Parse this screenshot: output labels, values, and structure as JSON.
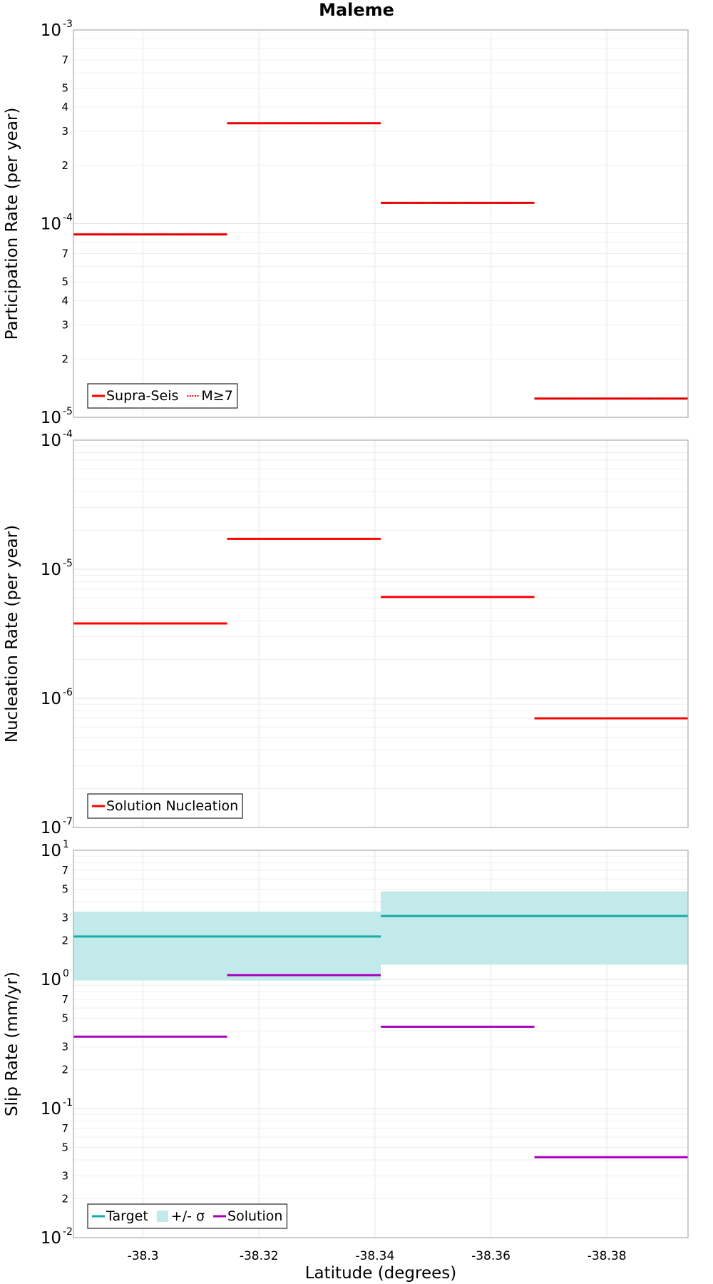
{
  "chart_data": [
    {
      "type": "line",
      "title": "Maleme",
      "ylabel": "Participation Rate (per year)",
      "yscale": "log",
      "ylim": [
        1e-05,
        0.001
      ],
      "xlim": [
        -38.288,
        -38.394
      ],
      "x_reversed": true,
      "grid": true,
      "legend_position": "bottom-left",
      "y_major_ticks": [
        {
          "base": "10",
          "exp": "-5",
          "value": 1e-05
        },
        {
          "base": "10",
          "exp": "-4",
          "value": 0.0001
        },
        {
          "base": "10",
          "exp": "-3",
          "value": 0.001
        }
      ],
      "y_minor_tick_labels": [
        "2",
        "3",
        "4",
        "5",
        "7"
      ],
      "series": [
        {
          "name": "Supra-Seis",
          "color": "#ff0000",
          "style": "solid",
          "segments": [
            {
              "x": [
                -38.288,
                -38.3145
              ],
              "y": 8.8e-05
            },
            {
              "x": [
                -38.3145,
                -38.341
              ],
              "y": 0.00033
            },
            {
              "x": [
                -38.341,
                -38.3675
              ],
              "y": 0.000128
            },
            {
              "x": [
                -38.3675,
                -38.394
              ],
              "y": 1.25e-05
            }
          ]
        },
        {
          "name": "M≥7",
          "color": "#ff0000",
          "style": "dotted",
          "segments": [
            {
              "x": [
                -38.288,
                -38.3145
              ],
              "y": 8.8e-05
            },
            {
              "x": [
                -38.3145,
                -38.341
              ],
              "y": 0.00033
            },
            {
              "x": [
                -38.341,
                -38.3675
              ],
              "y": 0.000128
            },
            {
              "x": [
                -38.3675,
                -38.394
              ],
              "y": 1.25e-05
            }
          ]
        }
      ]
    },
    {
      "type": "line",
      "ylabel": "Nucleation Rate (per year)",
      "yscale": "log",
      "ylim": [
        1e-07,
        0.0001
      ],
      "xlim": [
        -38.288,
        -38.394
      ],
      "x_reversed": true,
      "grid": true,
      "legend_position": "bottom-left",
      "y_major_ticks": [
        {
          "base": "10",
          "exp": "-7",
          "value": 1e-07
        },
        {
          "base": "10",
          "exp": "-6",
          "value": 1e-06
        },
        {
          "base": "10",
          "exp": "-5",
          "value": 1e-05
        },
        {
          "base": "10",
          "exp": "-4",
          "value": 0.0001
        }
      ],
      "series": [
        {
          "name": "Solution Nucleation",
          "color": "#ff0000",
          "style": "solid",
          "segments": [
            {
              "x": [
                -38.288,
                -38.3145
              ],
              "y": 3.8e-06
            },
            {
              "x": [
                -38.3145,
                -38.341
              ],
              "y": 1.72e-05
            },
            {
              "x": [
                -38.341,
                -38.3675
              ],
              "y": 6.1e-06
            },
            {
              "x": [
                -38.3675,
                -38.394
              ],
              "y": 7e-07
            }
          ]
        }
      ]
    },
    {
      "type": "line",
      "ylabel": "Slip Rate (mm/yr)",
      "xlabel": "Latitude (degrees)",
      "yscale": "log",
      "ylim": [
        0.01,
        10
      ],
      "xlim": [
        -38.288,
        -38.394
      ],
      "x_reversed": true,
      "grid": true,
      "legend_position": "bottom-left",
      "x_ticks": [
        "-38.3",
        "-38.32",
        "-38.34",
        "-38.36",
        "-38.38"
      ],
      "x_tick_values": [
        -38.3,
        -38.32,
        -38.34,
        -38.36,
        -38.38
      ],
      "y_major_ticks": [
        {
          "base": "10",
          "exp": "-2",
          "value": 0.01
        },
        {
          "base": "10",
          "exp": "-1",
          "value": 0.1
        },
        {
          "base": "10",
          "exp": "0",
          "value": 1
        },
        {
          "base": "10",
          "exp": "1",
          "value": 10
        }
      ],
      "y_minor_tick_labels": [
        "2",
        "3",
        "5",
        "7"
      ],
      "series": [
        {
          "name": "Target",
          "color": "#1aabab",
          "style": "solid",
          "segments": [
            {
              "x": [
                -38.288,
                -38.3145
              ],
              "y": 2.15
            },
            {
              "x": [
                -38.3145,
                -38.341
              ],
              "y": 2.15
            },
            {
              "x": [
                -38.341,
                -38.3675
              ],
              "y": 3.1
            },
            {
              "x": [
                -38.3675,
                -38.394
              ],
              "y": 3.1
            }
          ]
        },
        {
          "name": "+/- σ",
          "color": "#c2eaea",
          "style": "band",
          "segments": [
            {
              "x": [
                -38.288,
                -38.341
              ],
              "y_low": 0.98,
              "y_high": 3.35
            },
            {
              "x": [
                -38.341,
                -38.394
              ],
              "y_low": 1.3,
              "y_high": 4.8
            }
          ]
        },
        {
          "name": "Solution",
          "color": "#aa00bb",
          "style": "solid",
          "segments": [
            {
              "x": [
                -38.288,
                -38.3145
              ],
              "y": 0.36
            },
            {
              "x": [
                -38.3145,
                -38.341
              ],
              "y": 1.08
            },
            {
              "x": [
                -38.341,
                -38.3675
              ],
              "y": 0.43
            },
            {
              "x": [
                -38.3675,
                -38.394
              ],
              "y": 0.042
            }
          ]
        }
      ]
    }
  ]
}
